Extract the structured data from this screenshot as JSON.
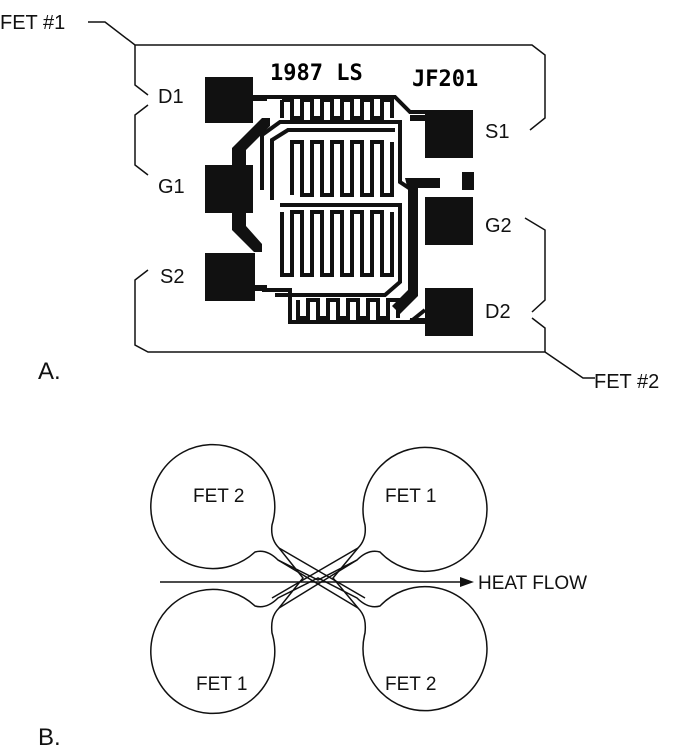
{
  "panel_a": {
    "label": "A.",
    "fet1_label": "FET #1",
    "fet2_label": "FET #2",
    "chip_marking_left": "1987 LS",
    "chip_marking_right": "JF201",
    "pins": {
      "d1": "D1",
      "g1": "G1",
      "s2": "S2",
      "s1": "S1",
      "g2": "G2",
      "d2": "D2"
    }
  },
  "panel_b": {
    "label": "B.",
    "top_left": "FET 2",
    "top_right": "FET 1",
    "bottom_left": "FET 1",
    "bottom_right": "FET 2",
    "arrow_label": "HEAT FLOW"
  }
}
